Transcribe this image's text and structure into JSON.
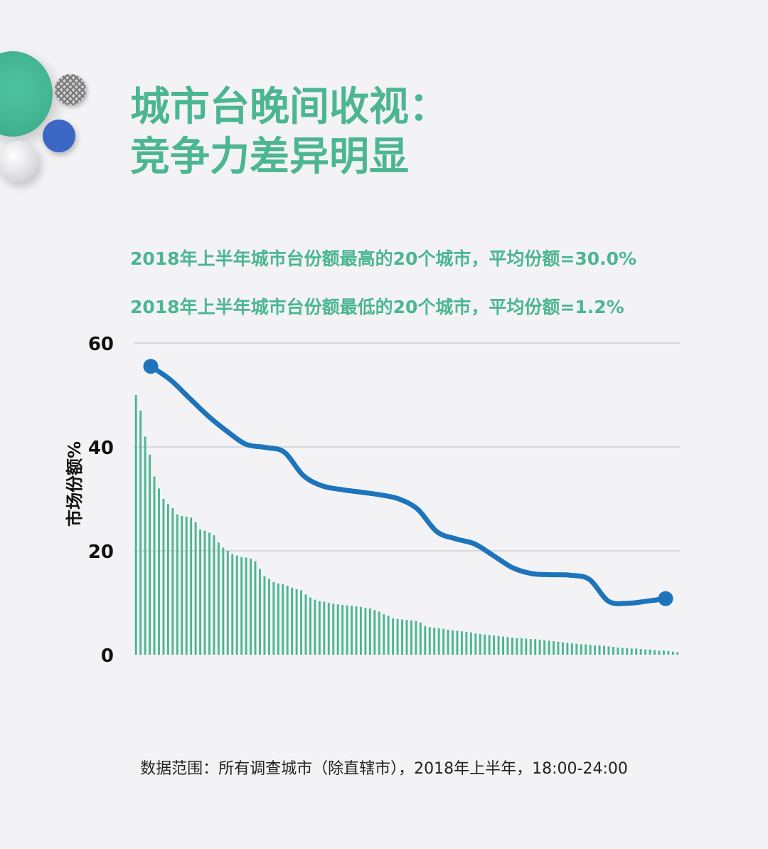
{
  "title": {
    "line1": "城市台晚间收视：",
    "line2": "竞争力差异明显"
  },
  "subtitles": {
    "top20": "2018年上半年城市台份额最高的20个城市，平均份额=30.0%",
    "bottom20": "2018年上半年城市台份额最低的20个城市，平均份额=1.2%"
  },
  "source": "数据范围：所有调查城市（除直辖市），2018年上半年，18:00-24:00",
  "colors": {
    "bars": "#4bb690",
    "line": "#1e74bb",
    "grid": "#d0d0d0",
    "text": "#4bb690"
  },
  "chart_data": {
    "type": "bar",
    "ylabel": "市场份额%",
    "ylim": [
      0,
      60
    ],
    "yticks": [
      0,
      20,
      40,
      60
    ],
    "grid": true,
    "bars": {
      "values": [
        50.0,
        47.0,
        42.0,
        38.5,
        34.3,
        32.0,
        30.0,
        29.0,
        28.2,
        27.0,
        26.7,
        26.6,
        26.4,
        25.5,
        24.1,
        23.9,
        23.5,
        23.0,
        21.6,
        20.6,
        20.0,
        19.4,
        19.1,
        18.8,
        18.7,
        18.5,
        18.0,
        16.5,
        15.1,
        14.6,
        14.0,
        13.7,
        13.6,
        13.3,
        12.9,
        12.6,
        12.4,
        11.6,
        11.0,
        10.6,
        10.3,
        10.2,
        10.0,
        9.8,
        9.7,
        9.6,
        9.5,
        9.4,
        9.3,
        9.2,
        9.0,
        8.9,
        8.6,
        8.3,
        7.8,
        7.5,
        7.0,
        6.9,
        6.8,
        6.7,
        6.6,
        6.5,
        6.2,
        5.5,
        5.3,
        5.2,
        5.1,
        5.0,
        4.8,
        4.7,
        4.6,
        4.5,
        4.4,
        4.3,
        4.1,
        4.0,
        3.9,
        3.8,
        3.7,
        3.6,
        3.5,
        3.4,
        3.3,
        3.2,
        3.2,
        3.1,
        3.0,
        3.0,
        2.9,
        2.8,
        2.7,
        2.6,
        2.5,
        2.4,
        2.3,
        2.2,
        2.1,
        2.0,
        2.0,
        1.9,
        1.8,
        1.8,
        1.7,
        1.6,
        1.5,
        1.4,
        1.3,
        1.3,
        1.2,
        1.2,
        1.1,
        1.0,
        1.0,
        0.9,
        0.8,
        0.8,
        0.7,
        0.6,
        0.5
      ]
    },
    "line": {
      "values": [
        55.5,
        53.0,
        49.5,
        46.0,
        43.0,
        40.5,
        39.9,
        39.0,
        34.5,
        32.5,
        31.8,
        31.3,
        30.8,
        30.0,
        28.0,
        23.7,
        22.3,
        21.3,
        19.0,
        16.7,
        15.6,
        15.4,
        15.3,
        14.5,
        10.3,
        9.9,
        10.3,
        10.8
      ]
    }
  }
}
